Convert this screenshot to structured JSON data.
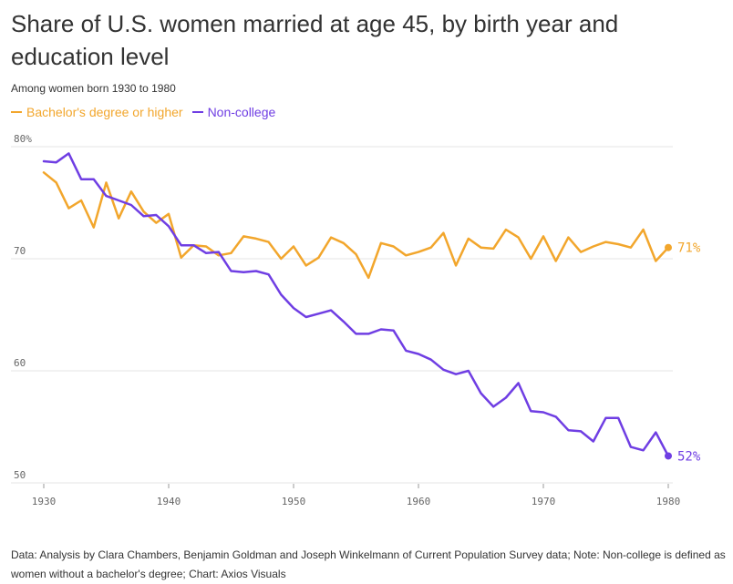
{
  "title": "Share of U.S. women married at age 45, by birth year and education level",
  "subtitle": "Among women born 1930 to 1980",
  "footnote": "Data: Analysis by Clara Chambers, Benjamin Goldman and Joseph Winkelmann of Current Population Survey data; Note: Non-college is defined as women without a bachelor's degree; Chart: Axios Visuals",
  "colors": {
    "college": "#f2a62c",
    "noncollege": "#6f3ee3",
    "grid": "#e6e6e6",
    "tick": "#666666"
  },
  "chart_data": {
    "type": "line",
    "xlim": [
      1930,
      1980
    ],
    "ylim": [
      50,
      80
    ],
    "x_ticks": [
      1930,
      1940,
      1950,
      1960,
      1970,
      1980
    ],
    "y_ticks": [
      50,
      60,
      70,
      80
    ],
    "y_tick_labels": [
      "50",
      "60",
      "70",
      "80%"
    ],
    "grid": true,
    "legend_position": "top-left",
    "x": [
      1930,
      1931,
      1932,
      1933,
      1934,
      1935,
      1936,
      1937,
      1938,
      1939,
      1940,
      1941,
      1942,
      1943,
      1944,
      1945,
      1946,
      1947,
      1948,
      1949,
      1950,
      1951,
      1952,
      1953,
      1954,
      1955,
      1956,
      1957,
      1958,
      1959,
      1960,
      1961,
      1962,
      1963,
      1964,
      1965,
      1966,
      1967,
      1968,
      1969,
      1970,
      1971,
      1972,
      1973,
      1974,
      1975,
      1976,
      1977,
      1978,
      1979,
      1980
    ],
    "series": [
      {
        "name": "Bachelor's degree or higher",
        "end_label": "71%",
        "values": [
          77.7,
          76.8,
          74.5,
          75.2,
          72.8,
          76.8,
          73.6,
          76.0,
          74.2,
          73.2,
          74.0,
          70.1,
          71.2,
          71.1,
          70.3,
          70.5,
          72.0,
          71.8,
          71.5,
          70.0,
          71.1,
          69.4,
          70.1,
          71.9,
          71.4,
          70.4,
          68.3,
          71.4,
          71.1,
          70.3,
          70.6,
          71.0,
          72.3,
          69.4,
          71.8,
          71.0,
          70.9,
          72.6,
          71.9,
          70.0,
          72.0,
          69.8,
          71.9,
          70.6,
          71.1,
          71.5,
          71.3,
          71.0,
          72.6,
          69.8,
          71.0
        ]
      },
      {
        "name": "Non-college",
        "end_label": "52%",
        "values": [
          78.7,
          78.6,
          79.4,
          77.1,
          77.1,
          75.6,
          75.2,
          74.8,
          73.8,
          73.9,
          72.9,
          71.2,
          71.2,
          70.5,
          70.6,
          68.9,
          68.8,
          68.9,
          68.6,
          66.8,
          65.6,
          64.8,
          65.1,
          65.4,
          64.4,
          63.3,
          63.3,
          63.7,
          63.6,
          61.8,
          61.5,
          61.0,
          60.1,
          59.7,
          60.0,
          58.0,
          56.8,
          57.6,
          58.9,
          56.4,
          56.3,
          55.9,
          54.7,
          54.6,
          53.7,
          55.8,
          55.8,
          53.2,
          52.9,
          54.5,
          52.4
        ]
      }
    ]
  }
}
